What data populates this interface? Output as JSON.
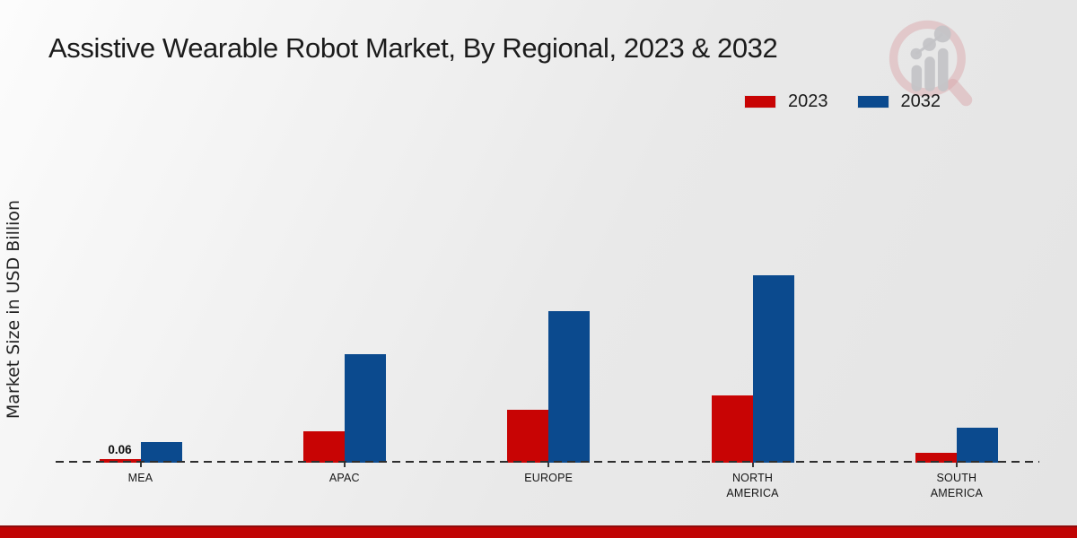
{
  "page": {
    "title": "Assistive Wearable Robot Market, By Regional, 2023 & 2032"
  },
  "axes": {
    "y_label": "Market Size in USD Billion"
  },
  "legend": [
    {
      "label": "2023",
      "color": "#c80404"
    },
    {
      "label": "2032",
      "color": "#0b4a8e"
    }
  ],
  "colors": {
    "series_2023": "#c80404",
    "series_2032": "#0b4a8e",
    "footer_band": "#c00404",
    "baseline": "#2e2e2e",
    "background": "#e9e9e9"
  },
  "logo": {
    "name": "magnifier-growth-chart-logo"
  },
  "chart_data": {
    "type": "bar",
    "title": "Assistive Wearable Robot Market, By Regional, 2023 & 2032",
    "xlabel": "",
    "ylabel": "Market Size in USD Billion",
    "categories": [
      "MEA",
      "APAC",
      "EUROPE",
      "NORTH AMERICA",
      "SOUTH AMERICA"
    ],
    "series": [
      {
        "name": "2023",
        "color": "#c80404",
        "values": [
          0.06,
          0.53,
          0.88,
          1.12,
          0.16
        ]
      },
      {
        "name": "2032",
        "color": "#0b4a8e",
        "values": [
          0.34,
          1.81,
          2.53,
          3.13,
          0.59
        ]
      }
    ],
    "bar_labels": [
      {
        "category": "MEA",
        "series": "2023",
        "text": "0.06"
      }
    ],
    "ylim": [
      0,
      4.5
    ],
    "grid": false,
    "y_axis_ticks_visible": false,
    "legend_position": "top-right",
    "baseline_style": "dashed"
  }
}
